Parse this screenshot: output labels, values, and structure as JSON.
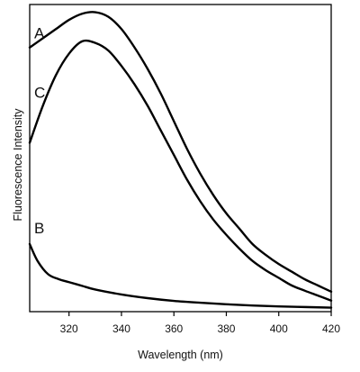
{
  "chart_data": {
    "type": "line",
    "title": "",
    "xlabel": "Wavelength (nm)",
    "ylabel": "Fluorescence Intensity",
    "xlim": [
      305,
      420
    ],
    "ylim": [
      0,
      100
    ],
    "xticks": [
      320,
      340,
      360,
      380,
      400,
      420
    ],
    "yticks_shown": false,
    "grid": false,
    "legend": "none",
    "series": [
      {
        "name": "A",
        "x": [
          305,
          310,
          315,
          320,
          325,
          330,
          335,
          340,
          345,
          350,
          355,
          360,
          365,
          370,
          375,
          380,
          385,
          390,
          395,
          400,
          405,
          410,
          415,
          420
        ],
        "y": [
          86,
          89,
          92,
          95,
          97,
          97.5,
          96,
          92,
          86,
          79,
          71,
          62,
          53,
          45,
          38,
          32,
          27,
          22,
          18.5,
          15.5,
          13,
          10.5,
          8.5,
          6.5
        ]
      },
      {
        "name": "C",
        "x": [
          305,
          310,
          315,
          320,
          325,
          330,
          335,
          340,
          345,
          350,
          355,
          360,
          365,
          370,
          375,
          380,
          385,
          390,
          395,
          400,
          405,
          410,
          415,
          420
        ],
        "y": [
          55,
          67,
          77,
          84,
          88,
          87.5,
          85,
          80,
          74,
          67,
          59,
          51,
          43,
          36,
          30,
          25,
          20.5,
          16.5,
          13.5,
          11,
          8.5,
          6.8,
          5.2,
          3.6
        ]
      },
      {
        "name": "B",
        "x": [
          305,
          308,
          312,
          316,
          320,
          325,
          330,
          340,
          350,
          360,
          370,
          380,
          390,
          400,
          410,
          420
        ],
        "y": [
          22,
          16.5,
          12.2,
          10.6,
          9.6,
          8.4,
          7.2,
          5.6,
          4.4,
          3.5,
          2.9,
          2.4,
          2.0,
          1.7,
          1.5,
          1.3
        ]
      }
    ],
    "curve_labels": [
      "A",
      "C",
      "B"
    ]
  }
}
